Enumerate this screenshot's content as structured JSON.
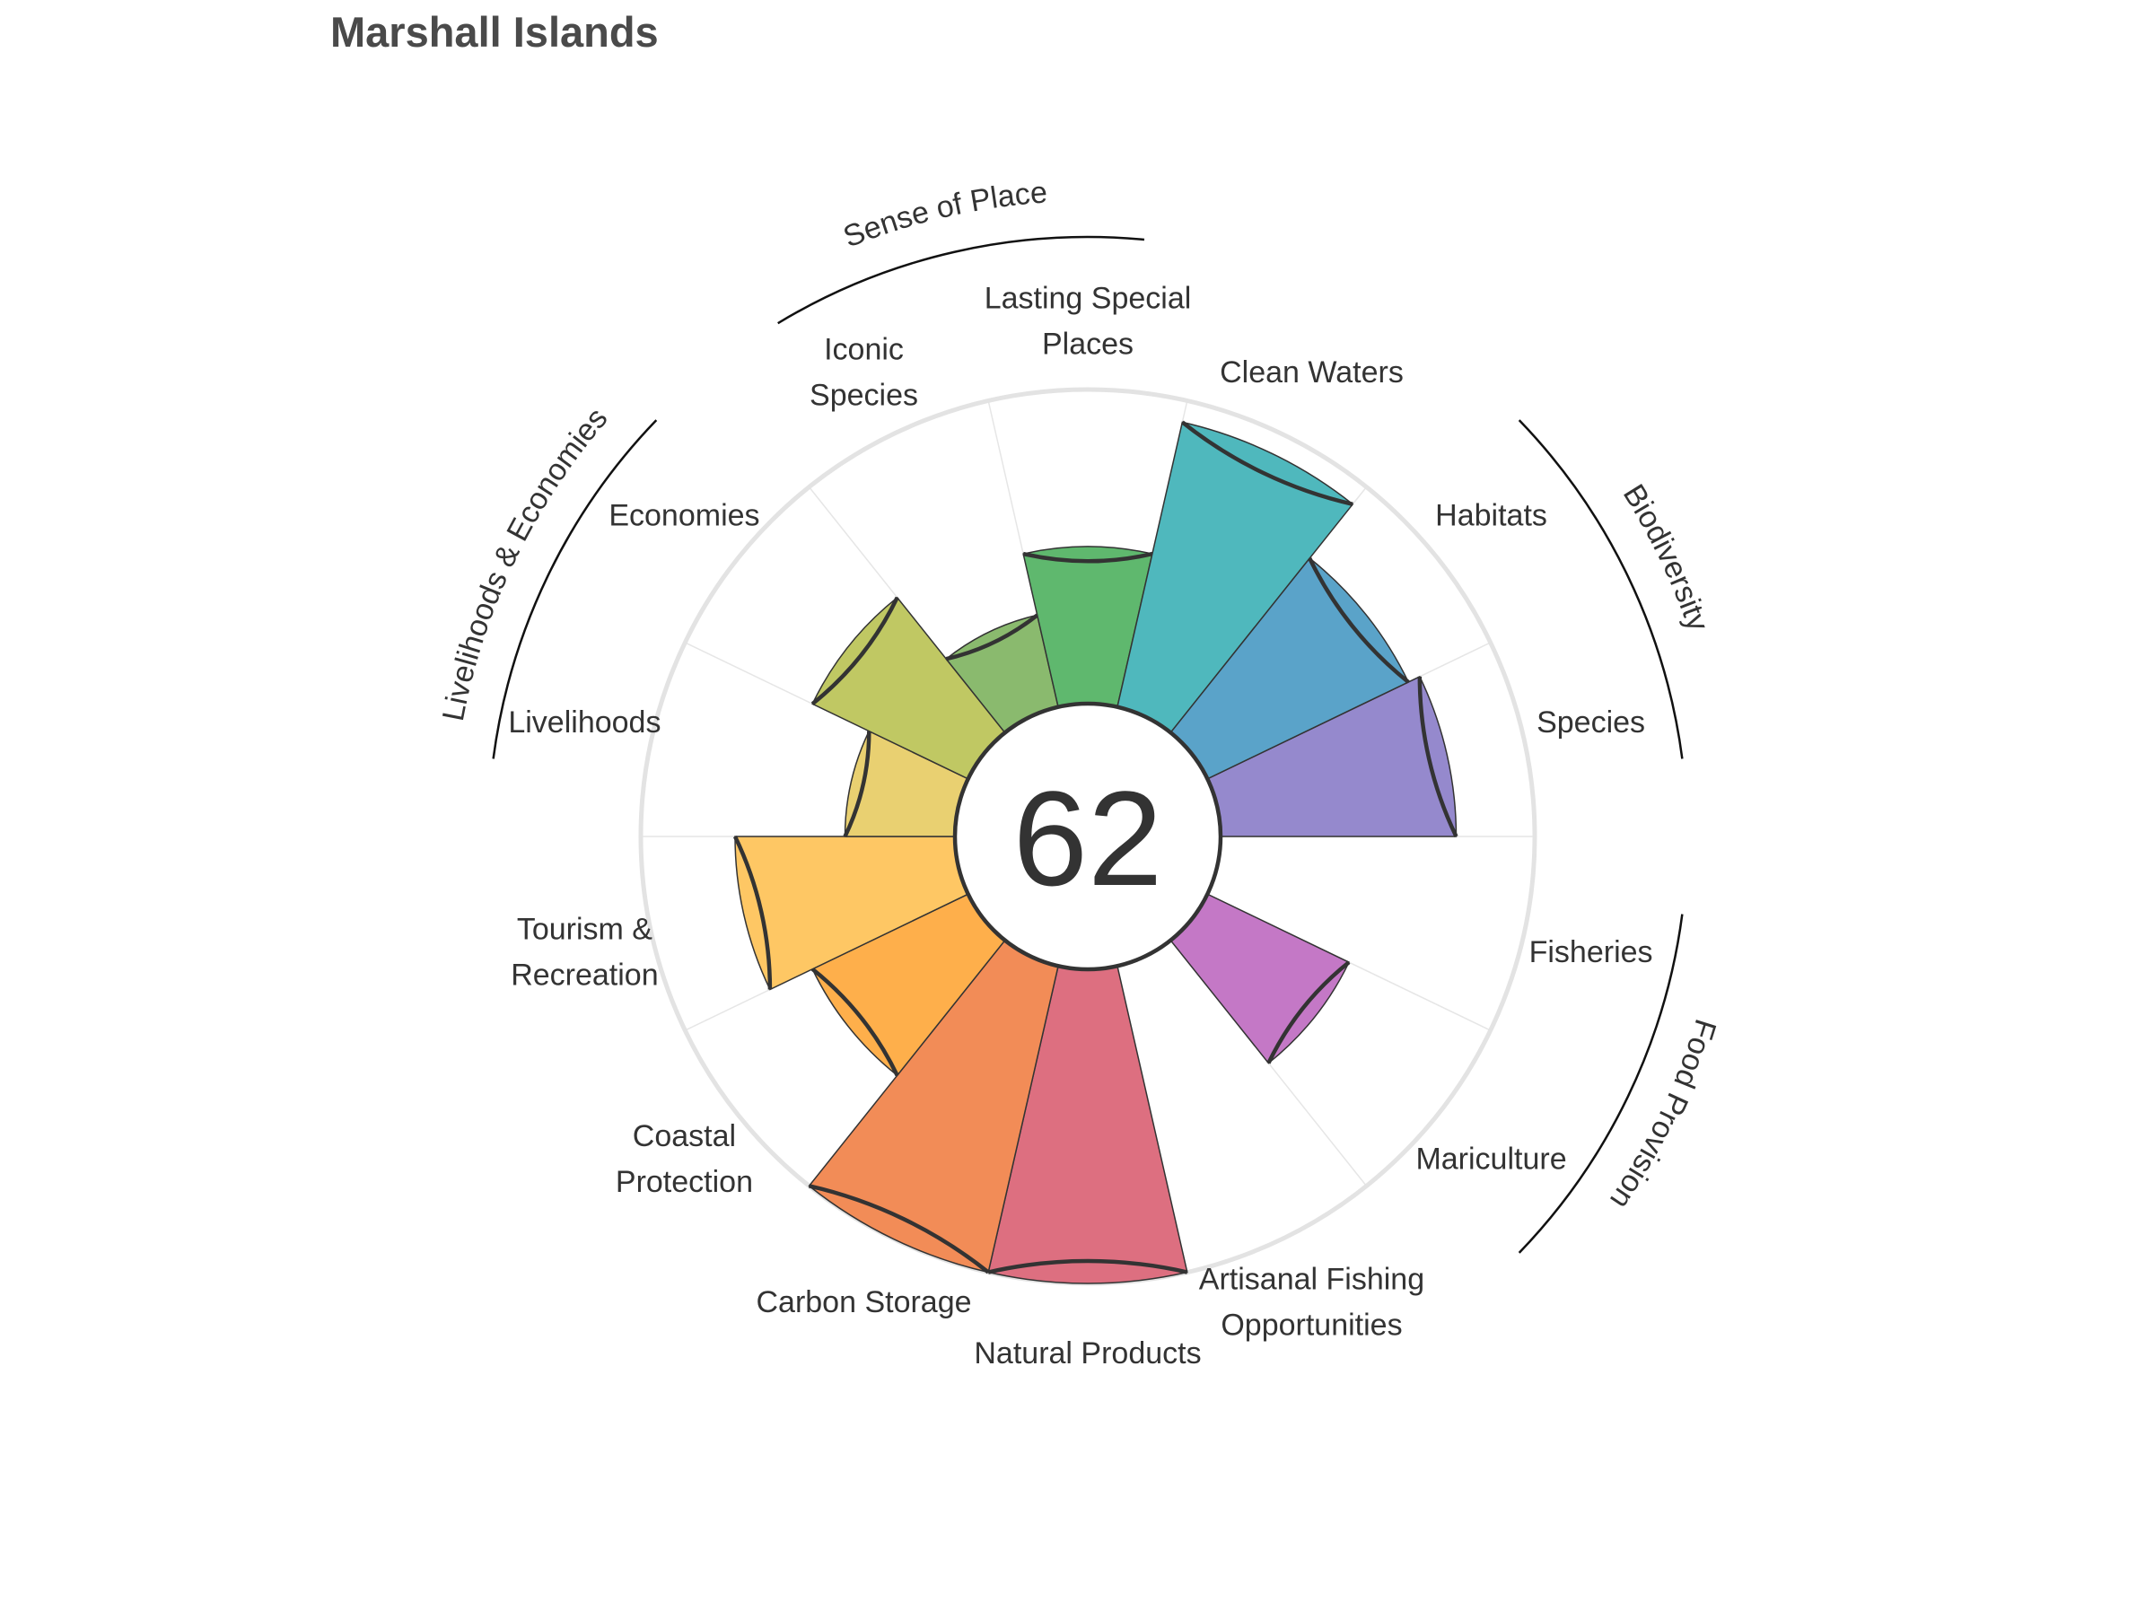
{
  "title": "Marshall Islands",
  "chart_data": {
    "type": "bar",
    "polar": true,
    "title": "Marshall Islands",
    "center_score": "62",
    "rlim": [
      0,
      100
    ],
    "categories": [
      "Fisheries",
      "Mariculture",
      "Artisanal Fishing Opportunities",
      "Natural Products",
      "Carbon Storage",
      "Coastal Protection",
      "Tourism & Recreation",
      "Livelihoods",
      "Economies",
      "Iconic Species",
      "Lasting Special Places",
      "Clean Waters",
      "Habitats",
      "Species"
    ],
    "label_lines": [
      [
        "Fisheries"
      ],
      [
        "Mariculture"
      ],
      [
        "Artisanal Fishing",
        "Opportunities"
      ],
      [
        "Natural Products"
      ],
      [
        "Carbon Storage"
      ],
      [
        "Coastal",
        "Protection"
      ],
      [
        "Tourism &",
        "Recreation"
      ],
      [
        "Livelihoods"
      ],
      [
        "Economies"
      ],
      [
        "Iconic",
        "Species"
      ],
      [
        "Lasting Special",
        "Places"
      ],
      [
        "Clean Waters"
      ],
      [
        "Habitats"
      ],
      [
        "Species"
      ]
    ],
    "values": [
      75,
      null,
      50,
      0,
      100,
      100,
      55,
      70,
      35,
      55,
      30,
      50,
      93,
      71
    ],
    "colors": [
      "#9589CD",
      "#A98ACB",
      "#C478C6",
      "#D57AA3",
      "#DD6F80",
      "#F28C57",
      "#FEAF4B",
      "#FEC764",
      "#E9D071",
      "#C0C863",
      "#8ABA6E",
      "#5FB86E",
      "#4FB8BD",
      "#5AA3C9"
    ],
    "groups": [
      {
        "name": "Food Provision",
        "categories": [
          "Fisheries",
          "Mariculture"
        ]
      },
      {
        "name": "Biodiversity",
        "categories": [
          "Habitats",
          "Species"
        ]
      },
      {
        "name": "Sense of Place",
        "categories": [
          "Iconic Species",
          "Lasting Special Places"
        ]
      },
      {
        "name": "Livelihoods & Economies",
        "categories": [
          "Livelihoods",
          "Economies"
        ]
      }
    ]
  }
}
